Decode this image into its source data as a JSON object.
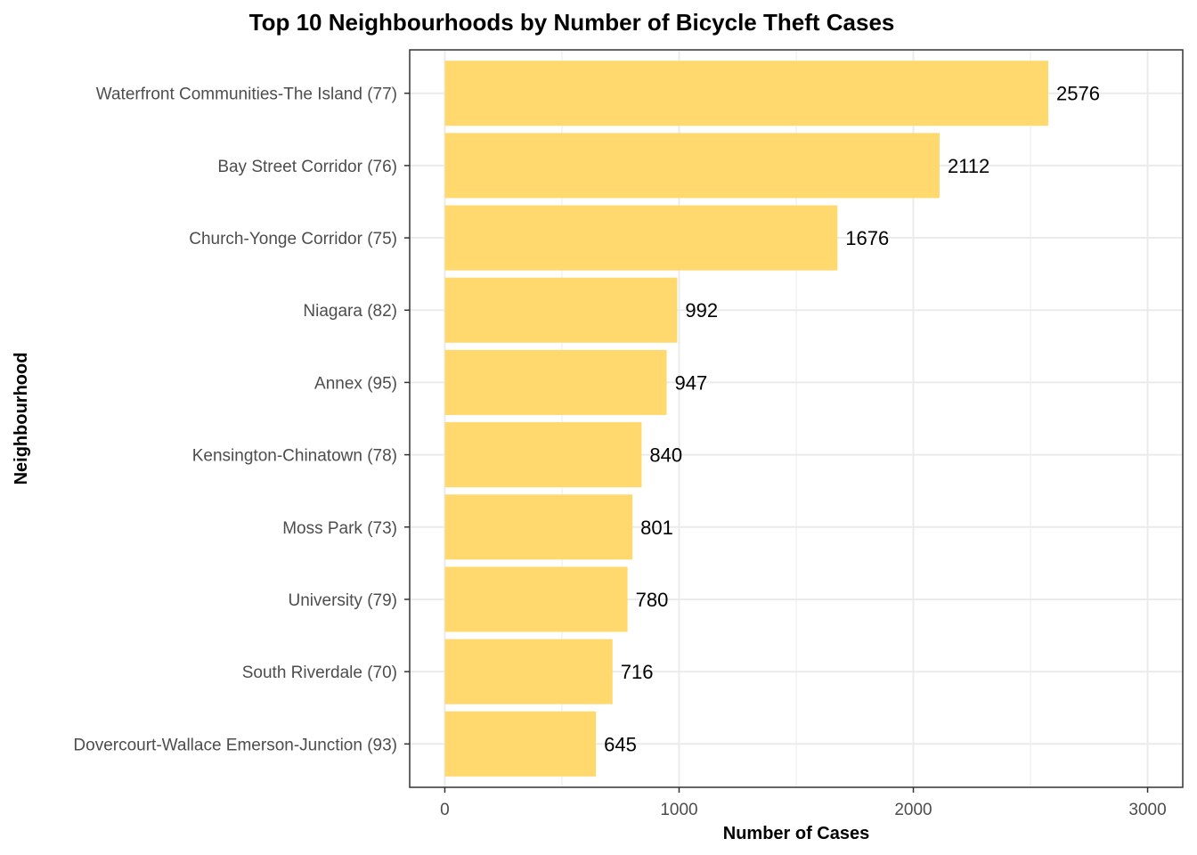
{
  "chart_data": {
    "type": "bar",
    "orientation": "horizontal",
    "title": "Top 10 Neighbourhoods by Number of Bicycle Theft Cases",
    "xlabel": "Number of Cases",
    "ylabel": "Neighbourhood",
    "categories": [
      "Waterfront Communities-The Island (77)",
      "Bay Street Corridor (76)",
      "Church-Yonge Corridor (75)",
      "Niagara (82)",
      "Annex (95)",
      "Kensington-Chinatown (78)",
      "Moss Park (73)",
      "University (79)",
      "South Riverdale (70)",
      "Dovercourt-Wallace Emerson-Junction (93)"
    ],
    "values": [
      2576,
      2112,
      1676,
      992,
      947,
      840,
      801,
      780,
      716,
      645
    ],
    "xlim": [
      -150,
      3150
    ],
    "xticks": [
      0,
      1000,
      2000,
      3000
    ],
    "grid": true,
    "bar_color": "#FFD96D",
    "grid_color": "#EBEBEB",
    "text_color": "#4D4D4D",
    "label_color": "#000000"
  }
}
